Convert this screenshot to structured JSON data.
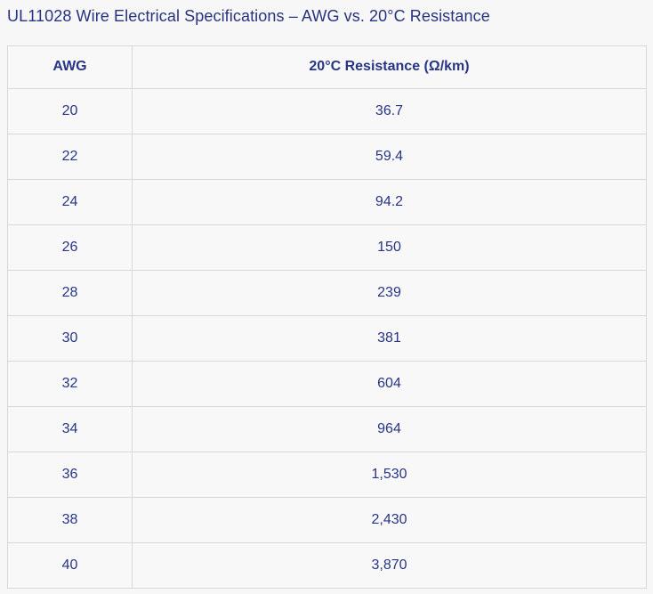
{
  "page": {
    "title": "UL11028 Wire Electrical Specifications – AWG vs. 20°C Resistance",
    "background_color": "#f7f7f7",
    "title_color": "#283380",
    "cell_text_color": "#283586",
    "border_color": "#d9d9d9"
  },
  "table": {
    "headers": {
      "awg": "AWG",
      "resistance": "20°C Resistance (Ω/km)"
    },
    "rows": [
      {
        "awg": "20",
        "resistance": "36.7"
      },
      {
        "awg": "22",
        "resistance": "59.4"
      },
      {
        "awg": "24",
        "resistance": "94.2"
      },
      {
        "awg": "26",
        "resistance": "150"
      },
      {
        "awg": "28",
        "resistance": "239"
      },
      {
        "awg": "30",
        "resistance": "381"
      },
      {
        "awg": "32",
        "resistance": "604"
      },
      {
        "awg": "34",
        "resistance": "964"
      },
      {
        "awg": "36",
        "resistance": "1,530"
      },
      {
        "awg": "38",
        "resistance": "2,430"
      },
      {
        "awg": "40",
        "resistance": "3,870"
      }
    ]
  },
  "chart_data": {
    "type": "table",
    "title": "UL11028 Wire Electrical Specifications – AWG vs. 20°C Resistance",
    "columns": [
      "AWG",
      "20°C Resistance (Ω/km)"
    ],
    "categories": [
      20,
      22,
      24,
      26,
      28,
      30,
      32,
      34,
      36,
      38,
      40
    ],
    "values": [
      36.7,
      59.4,
      94.2,
      150,
      239,
      381,
      604,
      964,
      1530,
      2430,
      3870
    ],
    "xlabel": "AWG",
    "ylabel": "20°C Resistance (Ω/km)"
  }
}
